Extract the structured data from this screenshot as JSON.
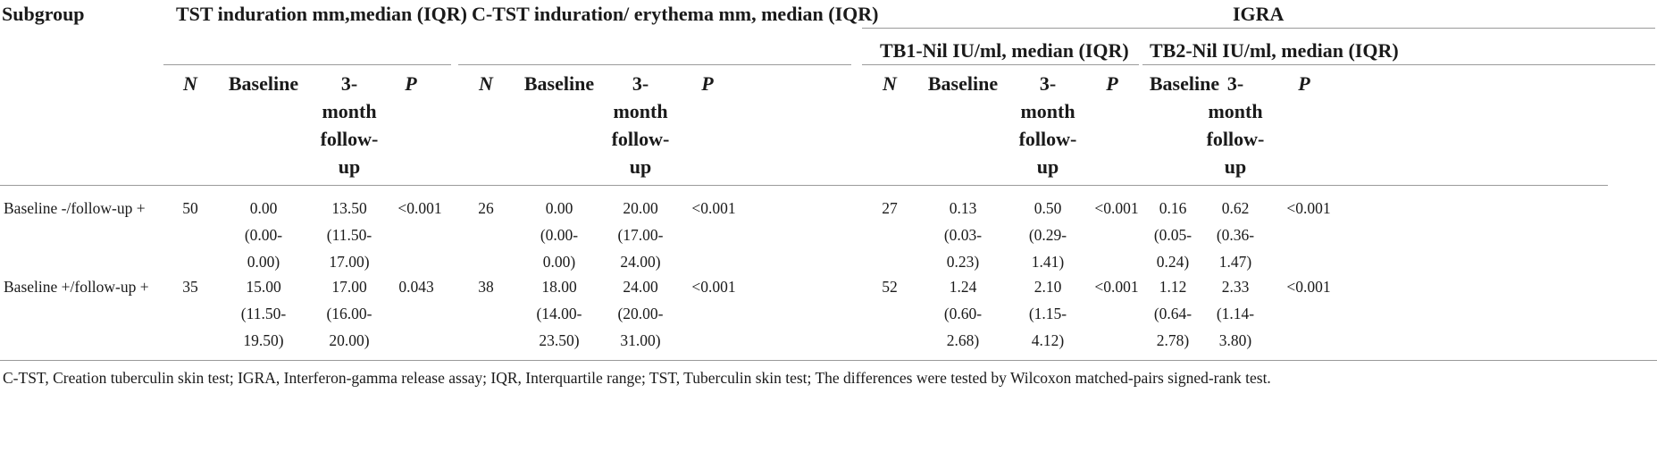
{
  "table": {
    "header": {
      "subgroup": "Subgroup",
      "tst": "TST induration mm,median (IQR)",
      "ctst": "C-TST induration/ erythema mm, median (IQR)",
      "igra": "IGRA",
      "tb1": "TB1-Nil IU/ml, median (IQR)",
      "tb2": "TB2-Nil IU/ml, median (IQR)"
    },
    "columns": {
      "n": "N",
      "baseline": "Baseline",
      "followup": [
        "3-",
        "month",
        "follow-",
        "up"
      ],
      "p": "P"
    },
    "rows": [
      {
        "label": "Baseline -/follow-up +",
        "tst": {
          "n": "50",
          "base": [
            "0.00",
            "(0.00-",
            "0.00)"
          ],
          "fu": [
            "13.50",
            "(11.50-",
            "17.00)"
          ],
          "p": "<0.001"
        },
        "ctst": {
          "n": "26",
          "base": [
            "0.00",
            "(0.00-",
            "0.00)"
          ],
          "fu": [
            "20.00",
            "(17.00-",
            "24.00)"
          ],
          "p": "<0.001"
        },
        "tb1": {
          "n": "27",
          "base": [
            "0.13",
            "(0.03-",
            "0.23)"
          ],
          "fu": [
            "0.50",
            "(0.29-",
            "1.41)"
          ],
          "p": "<0.001"
        },
        "tb2": {
          "base": [
            "0.16",
            "(0.05-",
            "0.24)"
          ],
          "fu": [
            "0.62",
            "(0.36-",
            "1.47)"
          ],
          "p": "<0.001"
        }
      },
      {
        "label": "Baseline +/follow-up +",
        "tst": {
          "n": "35",
          "base": [
            "15.00",
            "(11.50-",
            "19.50)"
          ],
          "fu": [
            "17.00",
            "(16.00-",
            "20.00)"
          ],
          "p": "0.043"
        },
        "ctst": {
          "n": "38",
          "base": [
            "18.00",
            "(14.00-",
            "23.50)"
          ],
          "fu": [
            "24.00",
            "(20.00-",
            "31.00)"
          ],
          "p": "<0.001"
        },
        "tb1": {
          "n": "52",
          "base": [
            "1.24",
            "(0.60-",
            "2.68)"
          ],
          "fu": [
            "2.10",
            "(1.15-",
            "4.12)"
          ],
          "p": "<0.001"
        },
        "tb2": {
          "base": [
            "1.12",
            "(0.64-",
            "2.78)"
          ],
          "fu": [
            "2.33",
            "(1.14-",
            "3.80)"
          ],
          "p": "<0.001"
        }
      }
    ],
    "footnote": "C-TST, Creation tuberculin skin test; IGRA, Interferon-gamma release assay; IQR, Interquartile range; TST, Tuberculin skin test; The differences were tested by Wilcoxon matched-pairs signed-rank test."
  }
}
